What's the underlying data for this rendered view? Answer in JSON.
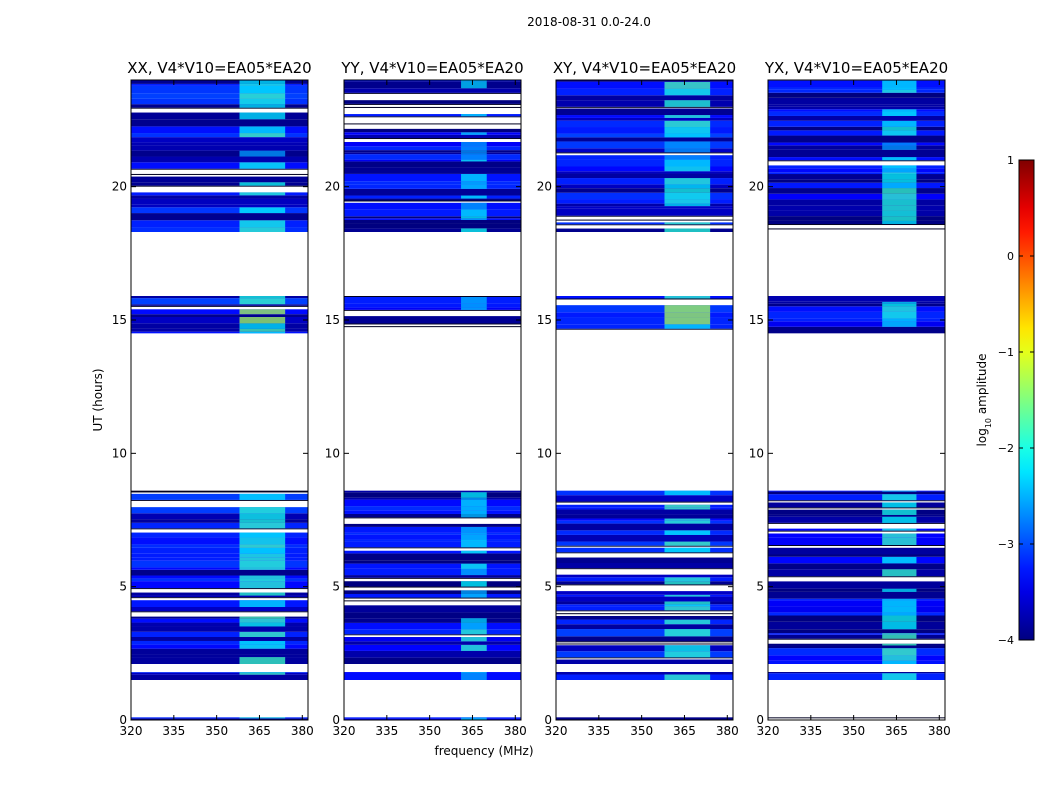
{
  "figure_title": "2018-08-31 0.0-24.0",
  "chart_data": {
    "type": "heatmap",
    "xlabel": "frequency (MHz)",
    "ylabel": "UT (hours)",
    "xlim": [
      320,
      382
    ],
    "ylim": [
      0,
      24
    ],
    "xticks": [
      320,
      335,
      350,
      365,
      380
    ],
    "yticks": [
      0,
      5,
      10,
      15,
      20
    ],
    "colorbar": {
      "label_prefix": "log",
      "label_sub": "10",
      "label_suffix": " amplitude",
      "range": [
        -4,
        1
      ],
      "ticks": [
        -4,
        -3,
        -2,
        -1,
        0,
        1
      ],
      "colormap": "jet"
    },
    "panels": [
      {
        "title": "XX, V4*V10=EA05*EA20",
        "rfi_band_mhz": [
          358,
          374
        ],
        "base_level": -3.2,
        "rfi_level": -2.0,
        "highlights": [
          {
            "t": [
              4.6,
              6.0
            ],
            "level": -1.9
          },
          {
            "t": [
              14.7,
              15.4
            ],
            "level": -1.3
          },
          {
            "t": [
              21.0,
              21.6
            ],
            "level": -2.6
          }
        ]
      },
      {
        "title": "YY, V4*V10=EA05*EA20",
        "rfi_band_mhz": [
          361,
          370
        ],
        "base_level": -3.3,
        "rfi_level": -2.3,
        "highlights": [
          {
            "t": [
              2.4,
              3.4
            ],
            "level": -1.9
          },
          {
            "t": [
              21.0,
              21.6
            ],
            "level": -2.6
          }
        ]
      },
      {
        "title": "XY, V4*V10=EA05*EA20",
        "rfi_band_mhz": [
          358,
          374
        ],
        "base_level": -3.2,
        "rfi_level": -2.0,
        "highlights": [
          {
            "t": [
              4.6,
              6.0
            ],
            "level": -1.9
          },
          {
            "t": [
              14.7,
              15.4
            ],
            "level": -1.3
          },
          {
            "t": [
              21.0,
              21.6
            ],
            "level": -2.6
          }
        ]
      },
      {
        "title": "YX, V4*V10=EA05*EA20",
        "rfi_band_mhz": [
          360,
          372
        ],
        "base_level": -3.3,
        "rfi_level": -2.1,
        "highlights": [
          {
            "t": [
              2.4,
              3.4
            ],
            "level": -1.8
          },
          {
            "t": [
              21.0,
              21.6
            ],
            "level": -2.6
          }
        ]
      }
    ],
    "data_segments_ut": [
      [
        0.0,
        0.1
      ],
      [
        1.5,
        1.8
      ],
      [
        2.1,
        8.6
      ],
      [
        14.5,
        15.9
      ],
      [
        18.3,
        24.0
      ]
    ]
  }
}
